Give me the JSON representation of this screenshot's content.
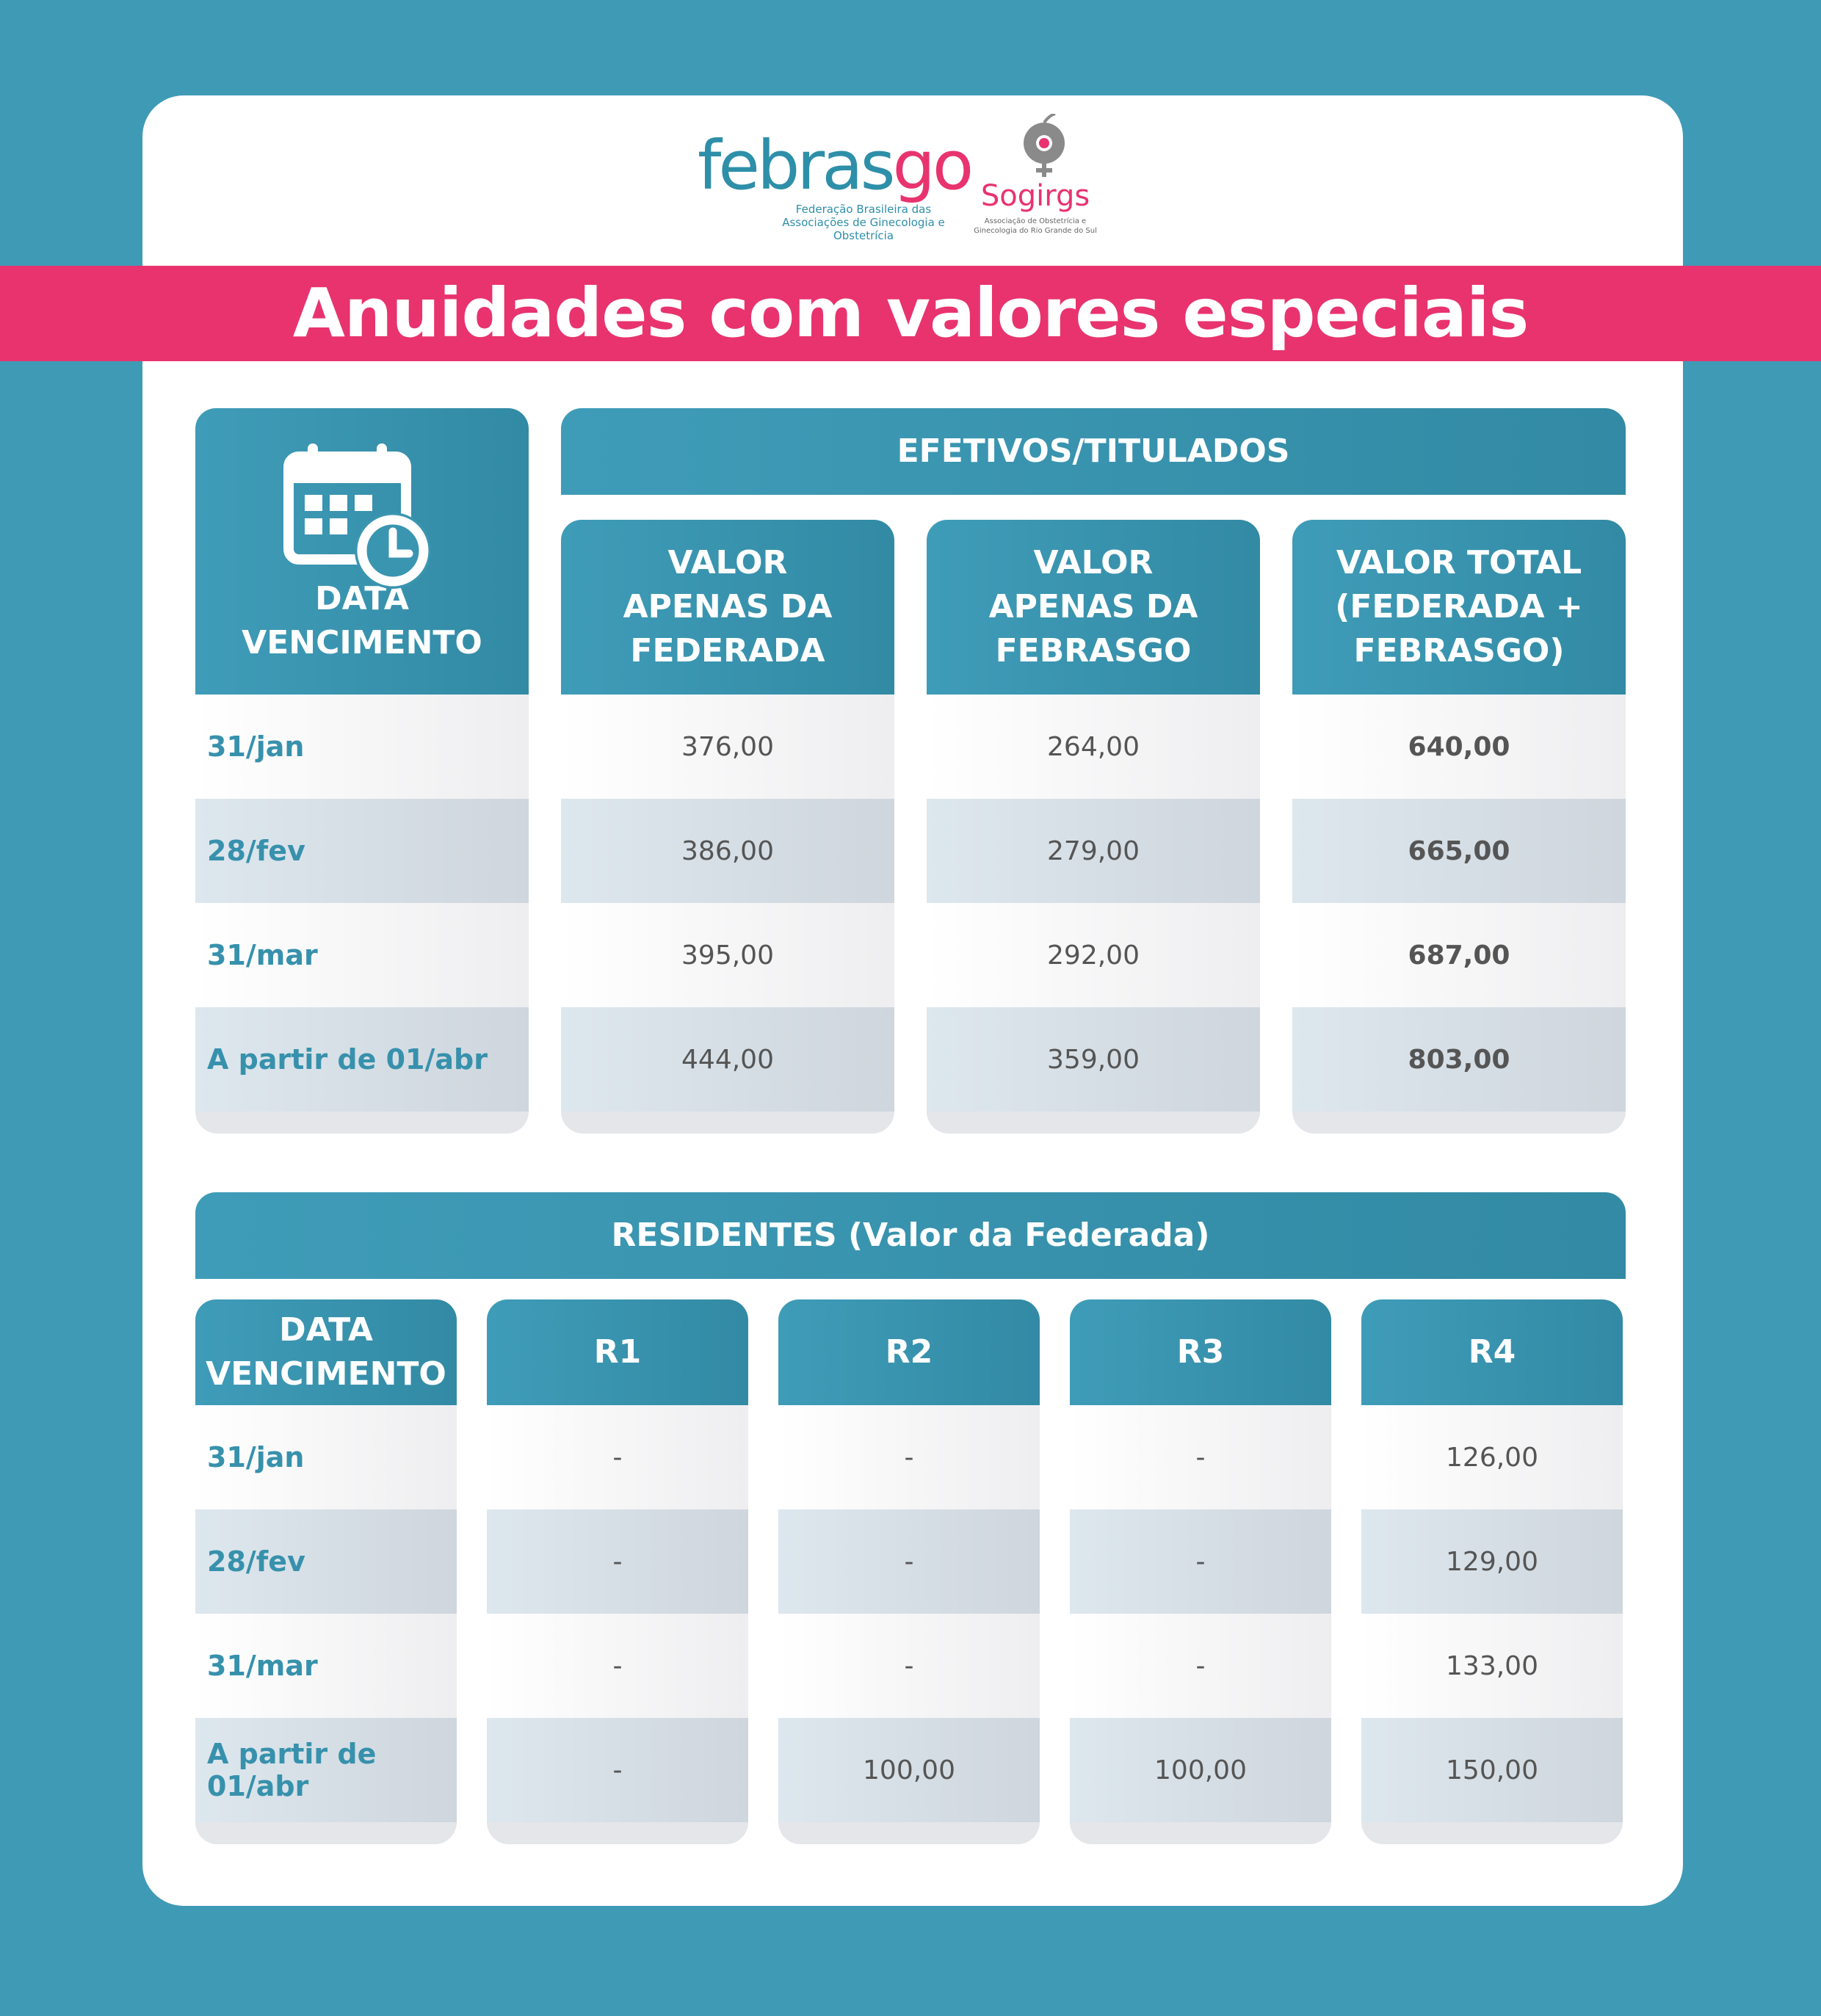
{
  "logos": {
    "febrasgo": {
      "word_a": "febras",
      "word_b": "go",
      "subtitle_1": "Federação Brasileira das",
      "subtitle_2": "Associações de Ginecologia e Obstetrícia"
    },
    "sogirgs": {
      "word": "Sogirgs",
      "subtitle_1": "Associação de Obstetrícia e",
      "subtitle_2": "Ginecologia do Rio Grande do Sul"
    }
  },
  "title": "Anuidades com valores especiais",
  "efetivos": {
    "group_label": "EFETIVOS/TITULADOS",
    "date_header": "DATA VENCIMENTO",
    "col_headers": [
      "VALOR\nAPENAS DA\nFEDERADA",
      "VALOR\nAPENAS DA\nFEBRASGO",
      "VALOR TOTAL\n(FEDERADA +\nFEBRASGO)"
    ],
    "rows": [
      {
        "date": "31/jan",
        "federada": "376,00",
        "febrasgo": "264,00",
        "total": "640,00"
      },
      {
        "date": "28/fev",
        "federada": "386,00",
        "febrasgo": "279,00",
        "total": "665,00"
      },
      {
        "date": "31/mar",
        "federada": "395,00",
        "febrasgo": "292,00",
        "total": "687,00"
      },
      {
        "date": "A partir de 01/abr",
        "federada": "444,00",
        "febrasgo": "359,00",
        "total": "803,00"
      }
    ]
  },
  "residentes": {
    "group_label": "RESIDENTES (Valor da Federada)",
    "date_header": "DATA\nVENCIMENTO",
    "col_headers": [
      "R1",
      "R2",
      "R3",
      "R4"
    ],
    "rows": [
      {
        "date": "31/jan",
        "r1": "-",
        "r2": "-",
        "r3": "-",
        "r4": "126,00"
      },
      {
        "date": "28/fev",
        "r1": "-",
        "r2": "-",
        "r3": "-",
        "r4": "129,00"
      },
      {
        "date": "31/mar",
        "r1": "-",
        "r2": "-",
        "r3": "-",
        "r4": "133,00"
      },
      {
        "date": "A partir de 01/abr",
        "r1": "-",
        "r2": "100,00",
        "r3": "100,00",
        "r4": "150,00"
      }
    ]
  },
  "colors": {
    "background": "#3f9ab6",
    "accent_pink": "#e8336f",
    "header_teal": "#3791ac"
  },
  "icons": [
    "calendar-clock-icon",
    "sogirgs-female-symbol-icon"
  ]
}
